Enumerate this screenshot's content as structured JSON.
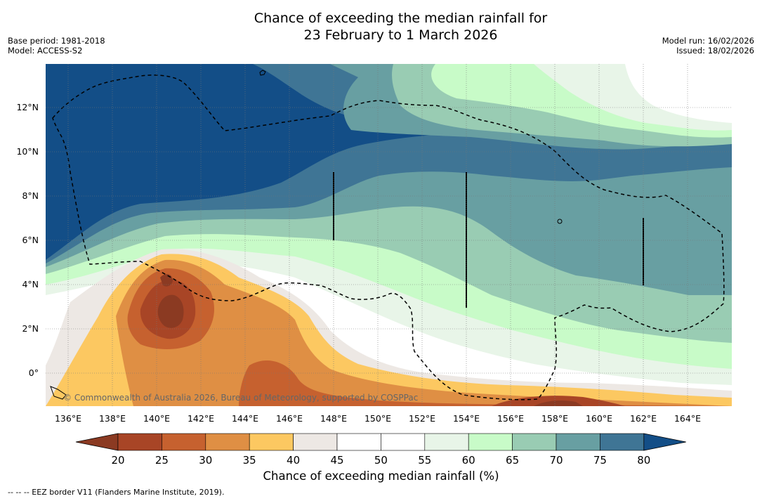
{
  "title_line1": "Chance of exceeding the median rainfall for",
  "title_line2": "23 February to 1 March 2026",
  "base_period": "Base period: 1981-2018",
  "model": "Model: ACCESS-S2",
  "model_run": "Model run: 16/02/2026",
  "issued": "Issued: 18/02/2026",
  "copyright": "© Commonwealth of Australia 2026, Bureau of Meteorology, supported by COSPPac",
  "lon_labels": [
    "136°E",
    "138°E",
    "140°E",
    "142°E",
    "144°E",
    "146°E",
    "148°E",
    "150°E",
    "152°E",
    "154°E",
    "156°E",
    "158°E",
    "160°E",
    "162°E",
    "164°E"
  ],
  "lat_labels": [
    "12°N",
    "10°N",
    "8°N",
    "6°N",
    "4°N",
    "2°N",
    "0°"
  ],
  "colorbar": {
    "title": "Chance of exceeding median rainfall (%)",
    "ticks": [
      "20",
      "25",
      "30",
      "35",
      "40",
      "45",
      "50",
      "55",
      "60",
      "65",
      "70",
      "75",
      "80"
    ],
    "colors": {
      "under": "#8b3a22",
      "bins": [
        "#a84526",
        "#c6612f",
        "#df8f44",
        "#fcc861",
        "#ede8e4",
        "#ffffff",
        "#ffffff",
        "#e8f5e8",
        "#c8fbc8",
        "#99ccb3",
        "#689fa2",
        "#3f7595"
      ],
      "over": "#134e87"
    }
  },
  "footer": "--  --  -- EEZ border V11 (Flanders Marine Institute, 2019)."
}
